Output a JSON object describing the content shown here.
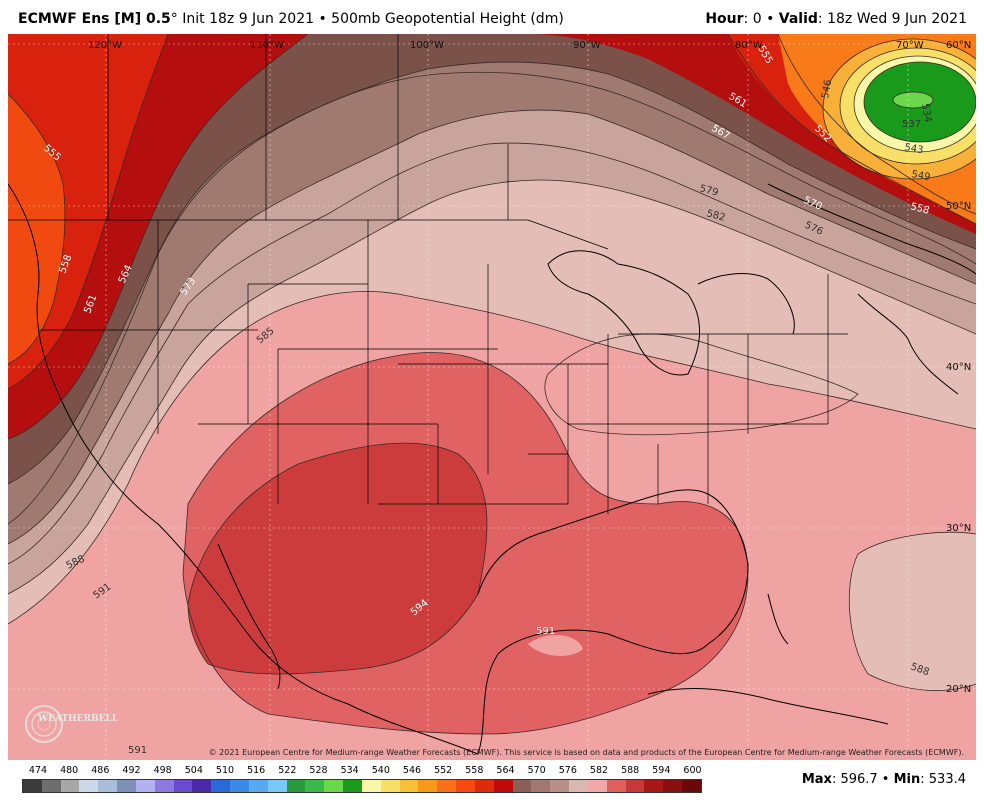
{
  "header": {
    "model": "ECMWF Ens [M] 0.5",
    "degree_symbol": "°",
    "init": " Init 18z 9 Jun 2021 • 500mb Geopotential Height (dm)",
    "hour_label": "Hour",
    "hour_value": ": 0 • ",
    "valid_label": "Valid",
    "valid_value": ": 18z Wed 9 Jun 2021"
  },
  "map": {
    "longitude_labels": [
      "120°W",
      "110°W",
      "100°W",
      "90°W",
      "80°W",
      "70°W"
    ],
    "latitude_labels": [
      "60°N",
      "50°N",
      "40°N",
      "30°N",
      "20°N"
    ],
    "contour_labels": [
      "555",
      "558",
      "561",
      "564",
      "573",
      "585",
      "588",
      "591",
      "594",
      "591",
      "588",
      "591",
      "561",
      "567",
      "579",
      "582",
      "570",
      "576",
      "558",
      "552",
      "546",
      "543",
      "549",
      "537",
      "534",
      "555"
    ],
    "copyright": "© 2021 European Centre for Medium-range Weather Forecasts (ECMWF). This service is based on data and products of the European Centre for Medium-range Weather Forecasts (ECMWF).",
    "logo_text": "WEATHERBELL"
  },
  "colorbar": {
    "labels": [
      "474",
      "480",
      "486",
      "492",
      "498",
      "504",
      "510",
      "516",
      "522",
      "528",
      "534",
      "540",
      "546",
      "552",
      "558",
      "564",
      "570",
      "576",
      "582",
      "588",
      "594",
      "600"
    ],
    "colors": [
      "#3a3a3a",
      "#6e6e6e",
      "#a8a8a8",
      "#cbd9ea",
      "#a8bedb",
      "#7c90b8",
      "#b2b2f0",
      "#8c7ae0",
      "#6a4ad0",
      "#4a2aa8",
      "#2a6ad8",
      "#3a8ae8",
      "#58aaf0",
      "#7ac8f8",
      "#2a9a3a",
      "#3ab84a",
      "#6ad84a",
      "#1a9a1a",
      "#f8f8a8",
      "#f8e068",
      "#f8c038",
      "#f89a18",
      "#f87018",
      "#f84a10",
      "#e02a0a",
      "#c00a0a",
      "#8a6058",
      "#a07870",
      "#b89088",
      "#d8b8b0",
      "#f0a8a8",
      "#e06060",
      "#c83838",
      "#a81818",
      "#881010",
      "#6a0808"
    ],
    "max_label": "Max",
    "max_value": ": 596.7 • ",
    "min_label": "Min",
    "min_value": ": 533.4"
  }
}
